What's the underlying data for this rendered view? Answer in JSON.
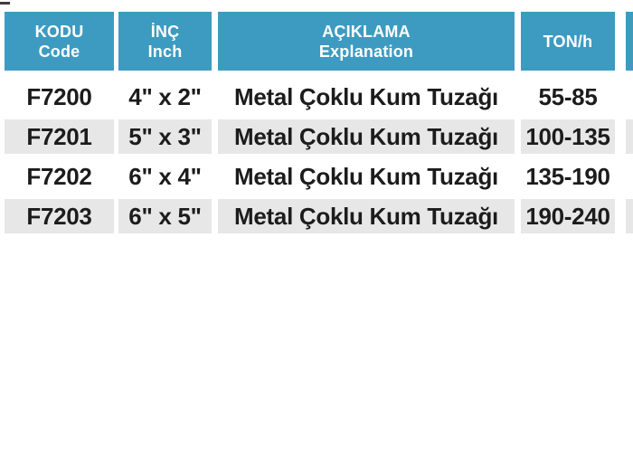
{
  "table": {
    "columns": [
      {
        "key": "code",
        "label_tr": "KODU",
        "label_en": "Code"
      },
      {
        "key": "inch",
        "label_tr": "İNÇ",
        "label_en": "Inch"
      },
      {
        "key": "explanation",
        "label_tr": "AÇIKLAMA",
        "label_en": "Explanation"
      },
      {
        "key": "ton_per_h",
        "label_tr": "TON/h",
        "label_en": ""
      }
    ],
    "rows": [
      {
        "code": "F7200",
        "inch": "4\" x 2\"",
        "explanation": "Metal Çoklu Kum Tuzağı",
        "ton_per_h": "55-85"
      },
      {
        "code": "F7201",
        "inch": "5\" x 3\"",
        "explanation": "Metal Çoklu Kum Tuzağı",
        "ton_per_h": "100-135"
      },
      {
        "code": "F7202",
        "inch": "6\" x 4\"",
        "explanation": "Metal Çoklu Kum Tuzağı",
        "ton_per_h": "135-190"
      },
      {
        "code": "F7203",
        "inch": "6\" x 5\"",
        "explanation": "Metal Çoklu Kum Tuzağı",
        "ton_per_h": "190-240"
      }
    ],
    "colors": {
      "page_bg": "#ffffff",
      "header_bg": "#3d9bc1",
      "header_text": "#ffffff",
      "row_alt_bg": "#e7e7e7",
      "row_text": "#1c1c1c"
    }
  }
}
